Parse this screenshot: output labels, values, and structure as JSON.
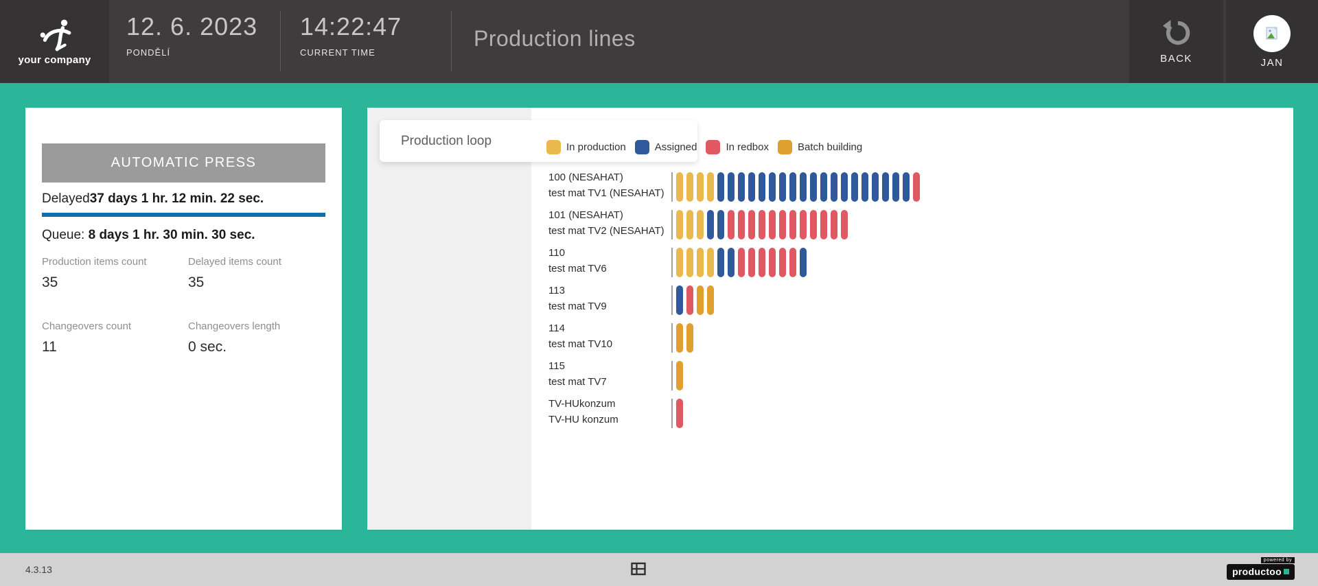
{
  "header": {
    "logo_text": "your company",
    "date": "12. 6. 2023",
    "date_label": "PONDĚLÍ",
    "time": "14:22:47",
    "time_label": "CURRENT TIME",
    "page_title": "Production lines",
    "back_label": "BACK",
    "user_name": "JAN"
  },
  "machine_panel": {
    "name": "AUTOMATIC PRESS",
    "delayed_label": "Delayed",
    "delayed_value": "37 days 1 hr. 12 min. 22 sec.",
    "queue_label": "Queue: ",
    "queue_value": "8 days 1 hr. 30 min. 30 sec.",
    "stats": [
      {
        "label": "Production items count",
        "value": "35"
      },
      {
        "label": "Delayed items count",
        "value": "35"
      },
      {
        "label": "Changeovers count",
        "value": "11"
      },
      {
        "label": "Changeovers length",
        "value": "0 sec."
      }
    ]
  },
  "production_loop": {
    "tab_label": "Production loop",
    "legend": [
      {
        "key": "in_production",
        "label": "In production",
        "color": "#eab94d"
      },
      {
        "key": "assigned",
        "label": "Assigned",
        "color": "#30599c"
      },
      {
        "key": "in_redbox",
        "label": "In redbox",
        "color": "#e05962"
      },
      {
        "key": "batch_building",
        "label": "Batch building",
        "color": "#dfa02f"
      }
    ],
    "status_colors": {
      "in_production": "#eab94d",
      "assigned": "#30599c",
      "in_redbox": "#e05962",
      "batch_building": "#dfa02f"
    },
    "rows": [
      {
        "code": "100 (NESAHAT)",
        "material": "test mat TV1 (NESAHAT)",
        "segments": [
          {
            "status": "in_production",
            "count": 4
          },
          {
            "status": "assigned",
            "count": 19
          },
          {
            "status": "in_redbox",
            "count": 1
          }
        ]
      },
      {
        "code": "101 (NESAHAT)",
        "material": "test mat TV2 (NESAHAT)",
        "segments": [
          {
            "status": "in_production",
            "count": 3
          },
          {
            "status": "assigned",
            "count": 2
          },
          {
            "status": "in_redbox",
            "count": 12
          }
        ]
      },
      {
        "code": "110",
        "material": "test mat TV6",
        "segments": [
          {
            "status": "in_production",
            "count": 4
          },
          {
            "status": "assigned",
            "count": 2
          },
          {
            "status": "in_redbox",
            "count": 6
          },
          {
            "status": "assigned",
            "count": 1
          }
        ]
      },
      {
        "code": "113",
        "material": "test mat TV9",
        "segments": [
          {
            "status": "assigned",
            "count": 1
          },
          {
            "status": "in_redbox",
            "count": 1
          },
          {
            "status": "batch_building",
            "count": 2
          }
        ]
      },
      {
        "code": "114",
        "material": "test mat TV10",
        "segments": [
          {
            "status": "batch_building",
            "count": 2
          }
        ]
      },
      {
        "code": "115",
        "material": "test mat TV7",
        "segments": [
          {
            "status": "batch_building",
            "count": 1
          }
        ]
      },
      {
        "code": "TV-HUkonzum",
        "material": "TV-HU konzum",
        "segments": [
          {
            "status": "in_redbox",
            "count": 1
          }
        ]
      }
    ]
  },
  "footer": {
    "version": "4.3.13",
    "powered_by": "powered by",
    "brand": "productoo"
  },
  "colors": {
    "accent_teal": "#2bb69a",
    "header_dark": "#3e3c3d",
    "header_block_dark": "#333132",
    "delayed_bar_blue": "#0f70a8",
    "machine_button_gray": "#9b9b9b",
    "footer_gray": "#d2d2d2"
  }
}
